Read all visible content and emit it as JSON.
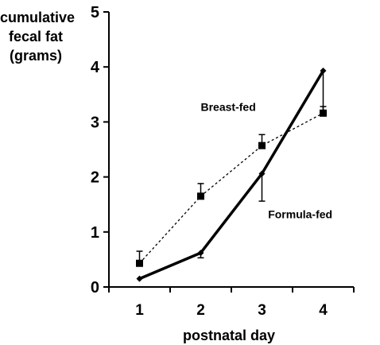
{
  "chart_data": {
    "type": "line",
    "title": "",
    "xlabel": "postnatal day",
    "ylabel_lines": [
      "cumulative",
      "fecal fat",
      "(grams)"
    ],
    "x": [
      1,
      2,
      3,
      4
    ],
    "xticks": [
      "1",
      "2",
      "3",
      "4"
    ],
    "xlim": [
      0.5,
      4.5
    ],
    "ylim": [
      0,
      5
    ],
    "yticks": [
      "0",
      "1",
      "2",
      "3",
      "4",
      "5"
    ],
    "grid": false,
    "legend": "none",
    "series": [
      {
        "name": "Breast-fed",
        "style": "dashed",
        "marker": "square",
        "values": [
          0.43,
          1.65,
          2.57,
          3.16
        ],
        "error_upper": [
          0.22,
          0.23,
          0.2,
          0.12
        ],
        "color": "#000000"
      },
      {
        "name": "Formula-fed",
        "style": "solid-thick",
        "marker": "diamond",
        "values": [
          0.15,
          0.62,
          2.06,
          3.93
        ],
        "error_lower": [
          0.0,
          0.09,
          0.5,
          0.78
        ],
        "color": "#000000"
      }
    ],
    "annotations": [
      {
        "text": "Breast-fed",
        "x": 2.0,
        "y": 3.2
      },
      {
        "text": "Formula-fed",
        "x": 3.1,
        "y": 1.25
      }
    ]
  }
}
